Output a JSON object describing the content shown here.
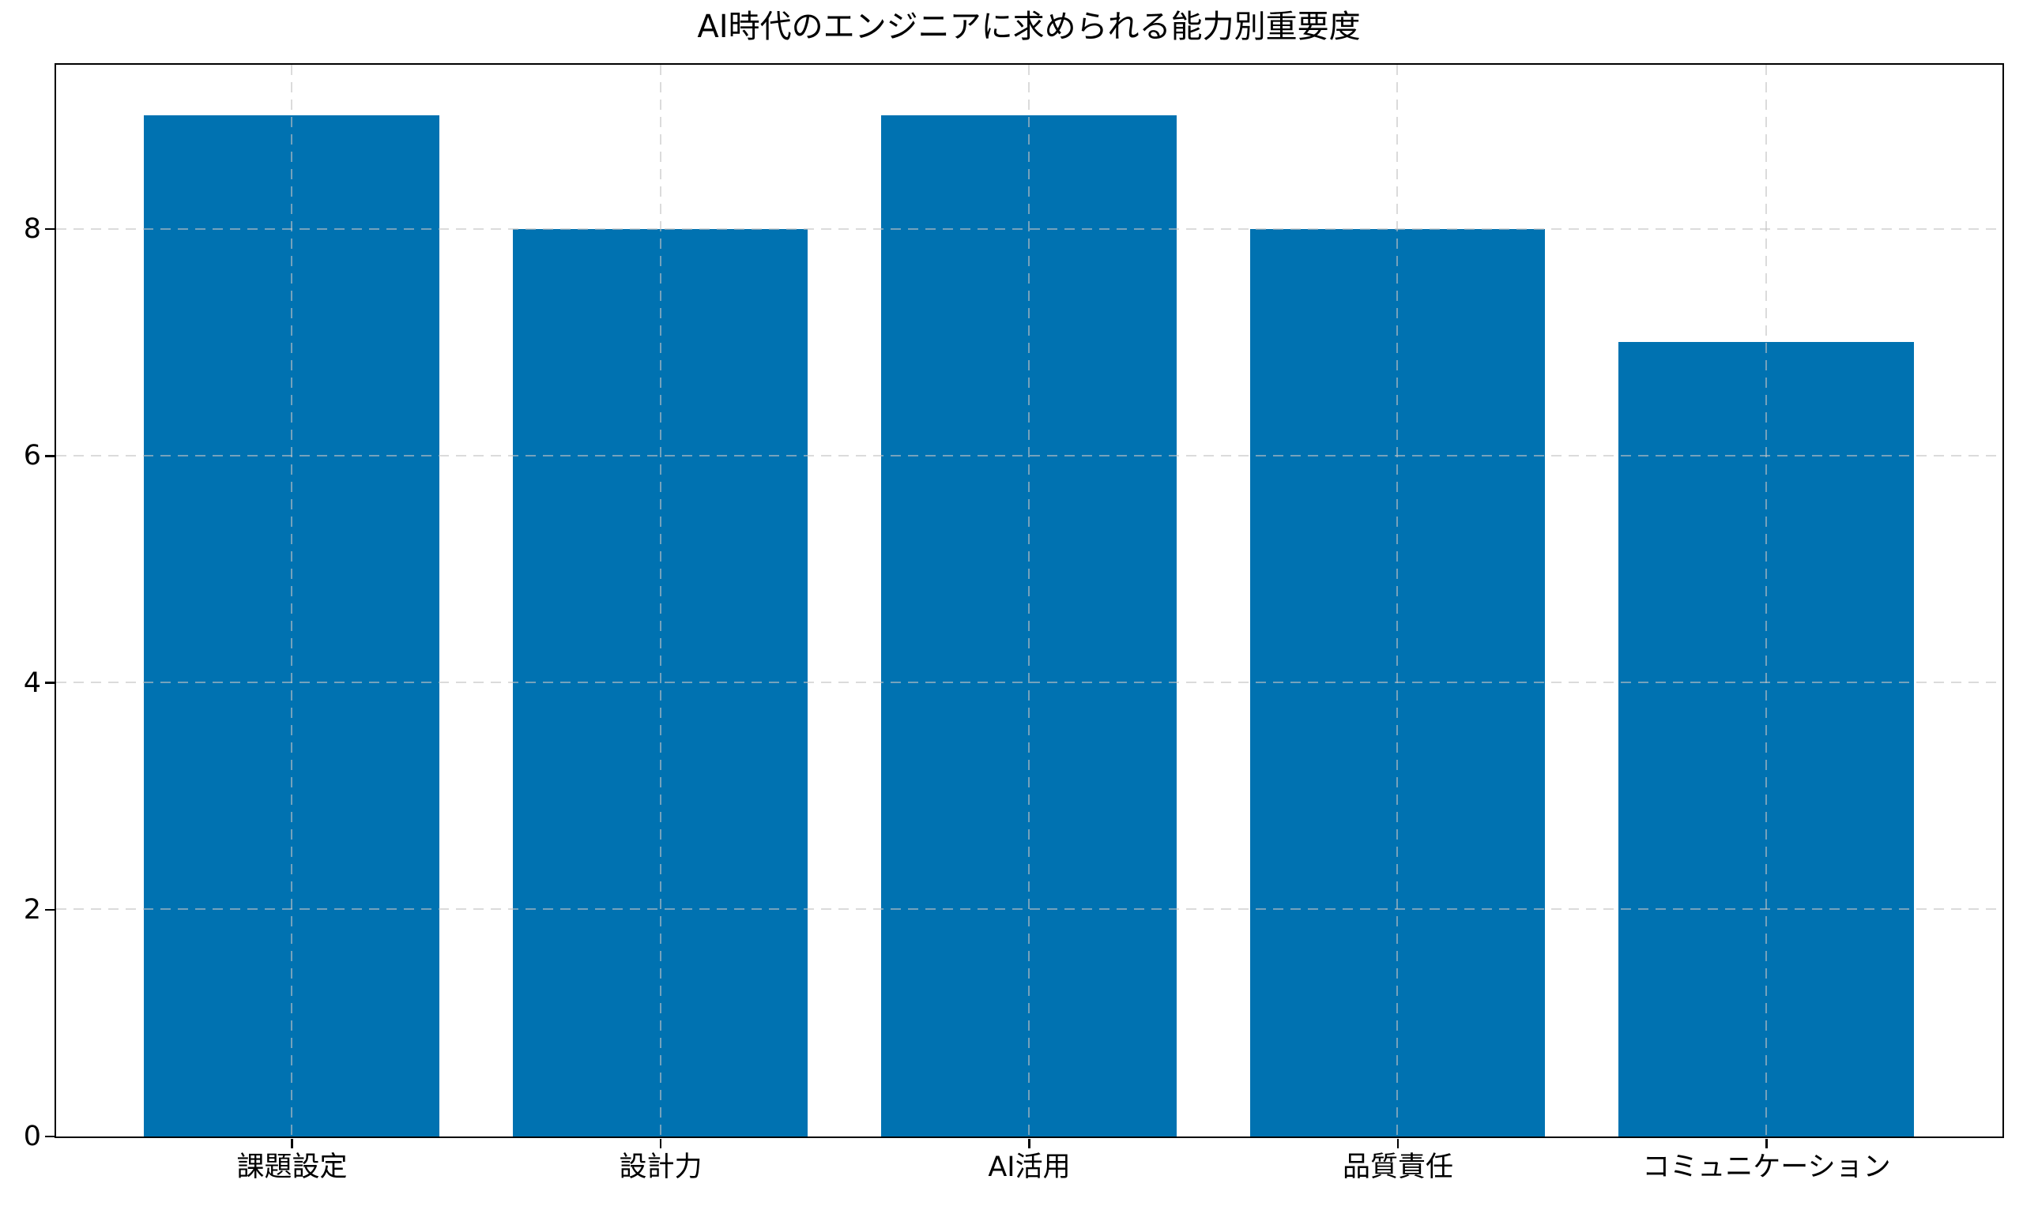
{
  "figure": {
    "background": "#ffffff"
  },
  "chart_data": {
    "type": "bar",
    "title": "AI時代のエンジニアに求められる能力別重要度",
    "categories": [
      "課題設定",
      "設計力",
      "AI活用",
      "品質責任",
      "コミュニケーション"
    ],
    "values": [
      9,
      8,
      9,
      8,
      7
    ],
    "xlabel": "",
    "ylabel": "",
    "ylim": [
      0,
      9.45
    ],
    "xlim": [
      -0.64,
      4.64
    ],
    "yticks": [
      0,
      2,
      4,
      6,
      8
    ],
    "bar_width_fraction": 0.8,
    "bar_color": "#0072b1",
    "axis_color": "#000000",
    "grid_color": "rgba(195,195,195,0.6)",
    "grid_style": "dashed",
    "grid_axes": "both",
    "grid_above_bars": true,
    "legend": "none"
  }
}
